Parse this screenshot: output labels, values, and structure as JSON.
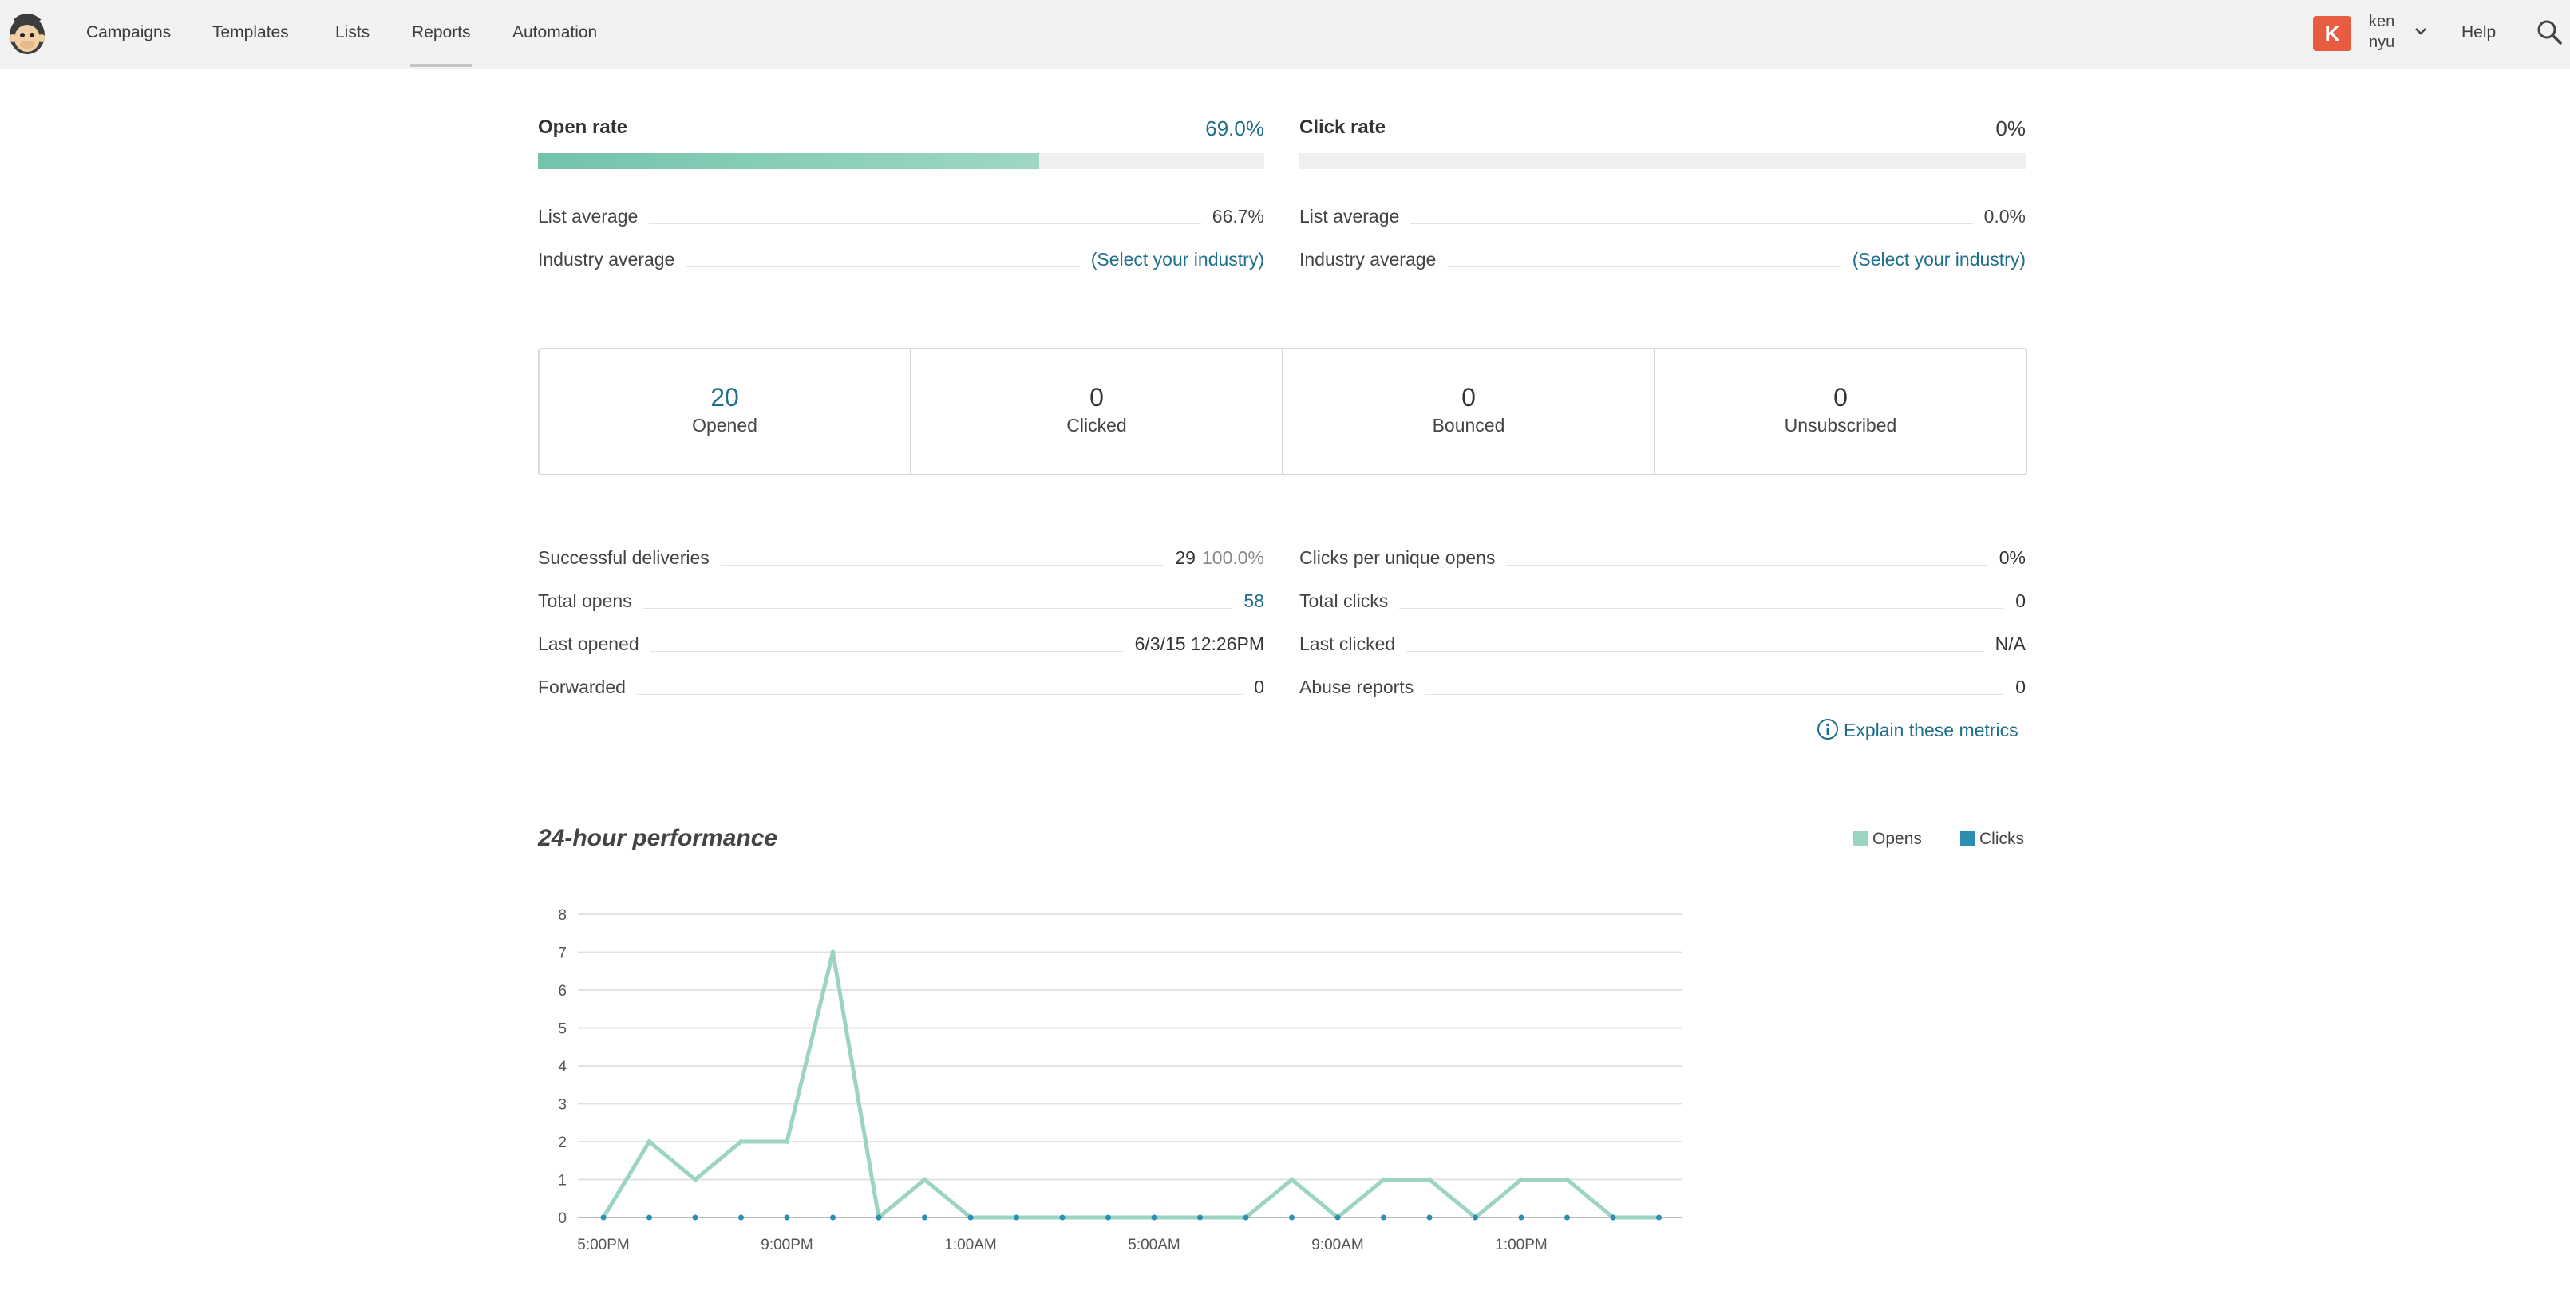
{
  "nav": {
    "items": [
      {
        "label": "Campaigns",
        "active": false
      },
      {
        "label": "Templates",
        "active": false
      },
      {
        "label": "Lists",
        "active": false
      },
      {
        "label": "Reports",
        "active": true
      },
      {
        "label": "Automation",
        "active": false
      }
    ],
    "avatar_initial": "K",
    "avatar_color": "#e85c41",
    "user_name": "ken",
    "user_org": "nyu",
    "help": "Help",
    "logo_icon": "mailchimp-logo",
    "search_icon": "search-icon"
  },
  "open_rate": {
    "label": "Open rate",
    "value": "69.0%",
    "fill_percent": 69.0,
    "list_avg_label": "List average",
    "list_avg_value": "66.7%",
    "industry_label": "Industry average",
    "industry_value": "(Select your industry)"
  },
  "click_rate": {
    "label": "Click rate",
    "value": "0%",
    "fill_percent": 0,
    "list_avg_label": "List average",
    "list_avg_value": "0.0%",
    "industry_label": "Industry average",
    "industry_value": "(Select your industry)"
  },
  "stats": [
    {
      "value": "20",
      "label": "Opened",
      "highlight": true
    },
    {
      "value": "0",
      "label": "Clicked",
      "highlight": false
    },
    {
      "value": "0",
      "label": "Bounced",
      "highlight": false
    },
    {
      "value": "0",
      "label": "Unsubscribed",
      "highlight": false
    }
  ],
  "metrics_left": [
    {
      "label": "Successful deliveries",
      "value": "29",
      "sub": "100.0%"
    },
    {
      "label": "Total opens",
      "value": "58",
      "teal": true
    },
    {
      "label": "Last opened",
      "value": "6/3/15 12:26PM"
    },
    {
      "label": "Forwarded",
      "value": "0"
    }
  ],
  "metrics_right": [
    {
      "label": "Clicks per unique opens",
      "value": "0%"
    },
    {
      "label": "Total clicks",
      "value": "0"
    },
    {
      "label": "Last clicked",
      "value": "N/A"
    },
    {
      "label": "Abuse reports",
      "value": "0"
    }
  ],
  "explain_link": "Explain these metrics",
  "chart_data": {
    "type": "line",
    "title": "24-hour performance",
    "series": [
      {
        "name": "Opens",
        "color": "#9bd4c2",
        "values": [
          0,
          2,
          1,
          2,
          2,
          7,
          0,
          1,
          0,
          0,
          0,
          0,
          0,
          0,
          0,
          1,
          0,
          1,
          1,
          0,
          1,
          1,
          0,
          0
        ]
      },
      {
        "name": "Clicks",
        "color": "#2a8fb0",
        "values": [
          0,
          0,
          0,
          0,
          0,
          0,
          0,
          0,
          0,
          0,
          0,
          0,
          0,
          0,
          0,
          0,
          0,
          0,
          0,
          0,
          0,
          0,
          0,
          0
        ]
      }
    ],
    "x_tick_labels": [
      "5:00PM",
      "9:00PM",
      "1:00AM",
      "5:00AM",
      "9:00AM",
      "1:00PM"
    ],
    "x_tick_every": 4,
    "y_ticks": [
      0,
      1,
      2,
      3,
      4,
      5,
      6,
      7,
      8
    ],
    "ylim": [
      0,
      8
    ],
    "grid": true,
    "legend_position": "top-right"
  }
}
